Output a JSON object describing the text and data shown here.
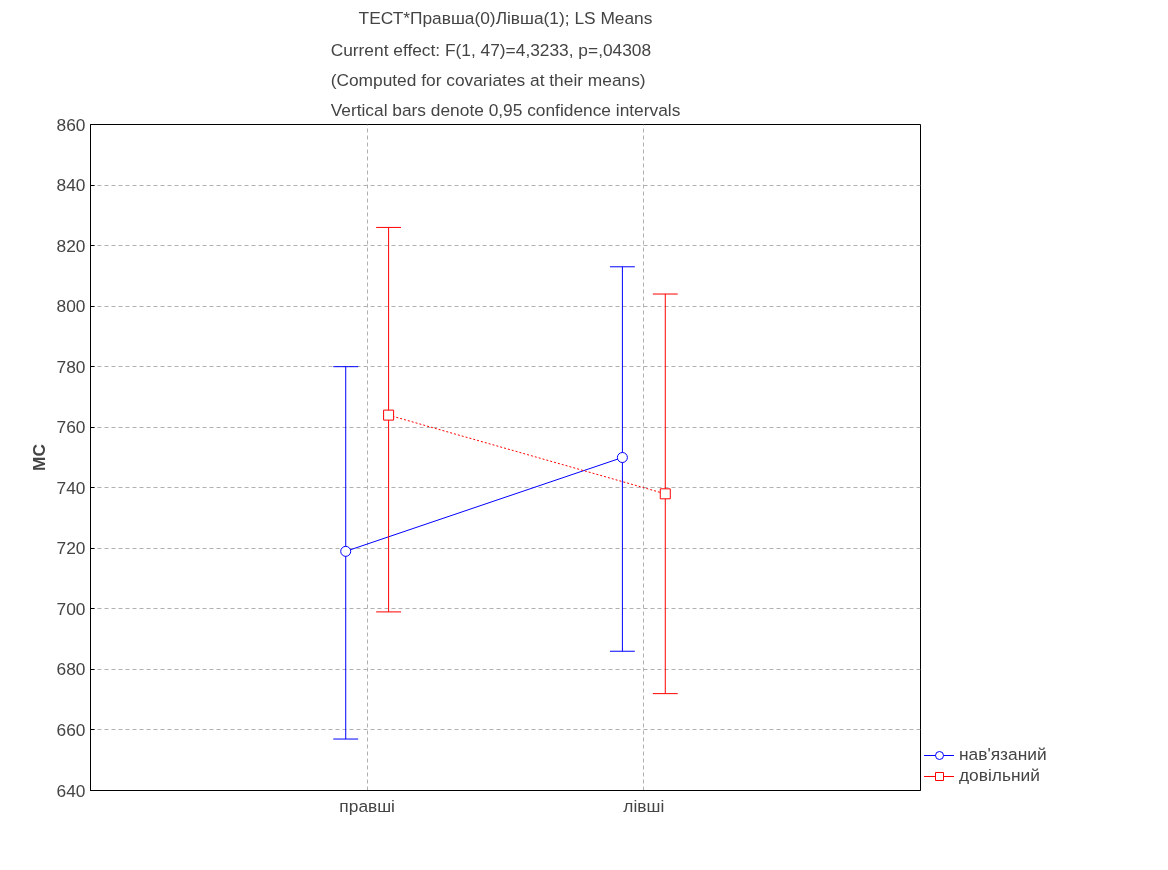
{
  "chart_data": {
    "type": "line",
    "title": "ТЕСТ*Правша(0)Лівша(1); LS Means",
    "subtitle": "Current effect: F(1, 47)=4,3233, p=,04308\n(Computed for covariates at their means)\nVertical bars denote 0,95 confidence intervals",
    "ylabel": "МС",
    "categories": [
      "правші",
      "лівші"
    ],
    "series": [
      {
        "name": "нав'язаний",
        "color": "#0000ff",
        "values": [
          719,
          750
        ],
        "errors": [
          [
            657,
            780
          ],
          [
            686,
            813
          ]
        ],
        "marker": "circle",
        "line_style": "solid"
      },
      {
        "name": "довільний",
        "color": "#ff0000",
        "values": [
          764,
          738
        ],
        "errors": [
          [
            699,
            826
          ],
          [
            672,
            804
          ]
        ],
        "marker": "square",
        "line_style": "dotted"
      }
    ],
    "ylim": [
      640,
      860
    ],
    "yticks": [
      640,
      660,
      680,
      700,
      720,
      740,
      760,
      780,
      800,
      820,
      840,
      860
    ],
    "grid": true,
    "legend": "bottom right"
  }
}
